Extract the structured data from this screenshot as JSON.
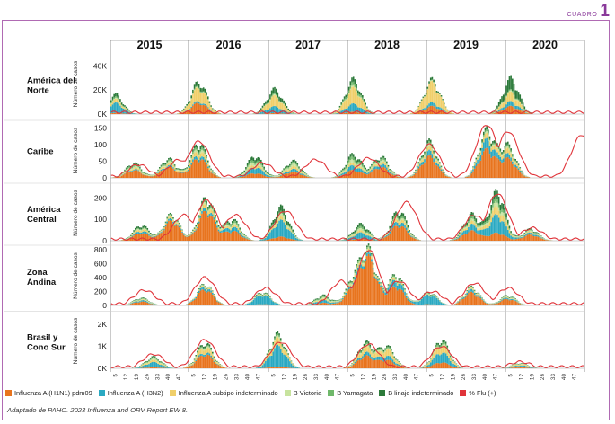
{
  "badge": {
    "label": "CUADRO",
    "number": "1"
  },
  "source": "Adaptado de PAHO. 2023 Influenza and ORV Report EW 8.",
  "chart_data": {
    "type": "bar",
    "stacked": true,
    "years": [
      "2015",
      "2016",
      "2017",
      "2018",
      "2019",
      "2020"
    ],
    "x_ticks": [
      "5",
      "12",
      "19",
      "26",
      "33",
      "40",
      "47"
    ],
    "ylabel": "Número de casos",
    "grid": false,
    "legend_position": "bottom",
    "series": [
      {
        "name": "Influenza A (H1N1) pdm09",
        "color": "#e8741e"
      },
      {
        "name": "Influenza A (H3N2)",
        "color": "#2aa9c2"
      },
      {
        "name": "Influenza A subtipo indeterminado",
        "color": "#f0cf6a"
      },
      {
        "name": "B Victoria",
        "color": "#c7e39e"
      },
      {
        "name": "B Yamagata",
        "color": "#6fb86a"
      },
      {
        "name": "B linaje indeterminado",
        "color": "#2c7a3a"
      },
      {
        "name": "% Flu (+)",
        "color": "#e0343a",
        "type": "line"
      }
    ],
    "panels": [
      {
        "region": "América del Norte",
        "yticks": [
          "0K",
          "20K",
          "40K"
        ],
        "ylim": [
          0,
          50000
        ],
        "season_peaks": [
          {
            "x": 2.5,
            "h1": 1000,
            "h3": 9000,
            "aun": 3000,
            "bv": 800,
            "by": 1200,
            "bl": 3000
          },
          {
            "x": 58,
            "h1": 10000,
            "h3": 1500,
            "aun": 12000,
            "bv": 800,
            "by": 800,
            "bl": 4000
          },
          {
            "x": 108,
            "h1": 800,
            "h3": 6000,
            "aun": 9000,
            "bv": 800,
            "by": 1000,
            "bl": 5000
          },
          {
            "x": 160,
            "h1": 2000,
            "h3": 7000,
            "aun": 14000,
            "bv": 1200,
            "by": 3000,
            "bl": 4000
          },
          {
            "x": 212,
            "h1": 7000,
            "h3": 3000,
            "aun": 18000,
            "bv": 600,
            "by": 400,
            "bl": 2000
          },
          {
            "x": 264,
            "h1": 7000,
            "h3": 4000,
            "aun": 8000,
            "bv": 1000,
            "by": 1000,
            "bl": 11000
          }
        ],
        "pos_peaks": [
          {
            "x": 1,
            "v": 26
          },
          {
            "x": 58,
            "v": 30
          },
          {
            "x": 108,
            "v": 25
          },
          {
            "x": 160,
            "v": 29
          },
          {
            "x": 212,
            "v": 27
          },
          {
            "x": 264,
            "v": 32
          }
        ]
      },
      {
        "region": "Caribe",
        "yticks": [
          "0",
          "50",
          "100",
          "150"
        ],
        "ylim": [
          0,
          165
        ],
        "season_peaks": [
          {
            "x": 15,
            "h1": 25,
            "h3": 3,
            "aun": 5,
            "bv": 5,
            "by": 6,
            "bl": 5
          },
          {
            "x": 38,
            "h1": 35,
            "h3": 5,
            "aun": 8,
            "bv": 5,
            "by": 5,
            "bl": 5
          },
          {
            "x": 58,
            "h1": 65,
            "h3": 10,
            "aun": 15,
            "bv": 8,
            "by": 8,
            "bl": 10
          },
          {
            "x": 95,
            "h1": 15,
            "h3": 20,
            "aun": 8,
            "bv": 10,
            "by": 8,
            "bl": 12
          },
          {
            "x": 120,
            "h1": 20,
            "h3": 8,
            "aun": 8,
            "bv": 8,
            "by": 6,
            "bl": 6
          },
          {
            "x": 160,
            "h1": 25,
            "h3": 15,
            "aun": 8,
            "bv": 10,
            "by": 10,
            "bl": 10
          },
          {
            "x": 178,
            "h1": 35,
            "h3": 10,
            "aun": 8,
            "bv": 6,
            "by": 6,
            "bl": 6
          },
          {
            "x": 210,
            "h1": 70,
            "h3": 15,
            "aun": 12,
            "bv": 8,
            "by": 6,
            "bl": 8
          },
          {
            "x": 248,
            "h1": 90,
            "h3": 30,
            "aun": 15,
            "bv": 5,
            "by": 5,
            "bl": 10
          },
          {
            "x": 262,
            "h1": 60,
            "h3": 12,
            "aun": 15,
            "bv": 5,
            "by": 5,
            "bl": 8
          }
        ],
        "pos_peaks": [
          {
            "x": 18,
            "v": 40
          },
          {
            "x": 45,
            "v": 55
          },
          {
            "x": 58,
            "v": 110
          },
          {
            "x": 100,
            "v": 45
          },
          {
            "x": 135,
            "v": 55
          },
          {
            "x": 170,
            "v": 60
          },
          {
            "x": 210,
            "v": 100
          },
          {
            "x": 248,
            "v": 160
          },
          {
            "x": 262,
            "v": 140
          },
          {
            "x": 311,
            "v": 130
          }
        ]
      },
      {
        "region": "América Central",
        "yticks": [
          "0",
          "100",
          "200"
        ],
        "ylim": [
          0,
          260
        ],
        "season_peaks": [
          {
            "x": 20,
            "h1": 40,
            "h3": 10,
            "aun": 10,
            "bv": 5,
            "by": 5,
            "bl": 10
          },
          {
            "x": 40,
            "h1": 100,
            "h3": 10,
            "aun": 10,
            "bv": 5,
            "by": 5,
            "bl": 5
          },
          {
            "x": 63,
            "h1": 150,
            "h3": 15,
            "aun": 20,
            "bv": 10,
            "by": 10,
            "bl": 15
          },
          {
            "x": 80,
            "h1": 50,
            "h3": 20,
            "aun": 10,
            "bv": 10,
            "by": 10,
            "bl": 10
          },
          {
            "x": 112,
            "h1": 20,
            "h3": 80,
            "aun": 15,
            "bv": 15,
            "by": 10,
            "bl": 30
          },
          {
            "x": 165,
            "h1": 10,
            "h3": 30,
            "aun": 10,
            "bv": 10,
            "by": 10,
            "bl": 15
          },
          {
            "x": 190,
            "h1": 80,
            "h3": 20,
            "aun": 15,
            "bv": 10,
            "by": 10,
            "bl": 20
          },
          {
            "x": 238,
            "h1": 50,
            "h3": 30,
            "aun": 15,
            "bv": 10,
            "by": 10,
            "bl": 20
          },
          {
            "x": 255,
            "h1": 40,
            "h3": 90,
            "aun": 40,
            "bv": 20,
            "by": 20,
            "bl": 40
          },
          {
            "x": 277,
            "h1": 30,
            "h3": 10,
            "aun": 5,
            "bv": 5,
            "by": 5,
            "bl": 5
          }
        ],
        "pos_peaks": [
          {
            "x": 48,
            "v": 120
          },
          {
            "x": 63,
            "v": 190
          },
          {
            "x": 82,
            "v": 120
          },
          {
            "x": 115,
            "v": 140
          },
          {
            "x": 195,
            "v": 180
          },
          {
            "x": 240,
            "v": 120
          },
          {
            "x": 255,
            "v": 220
          },
          {
            "x": 278,
            "v": 60
          }
        ]
      },
      {
        "region": "Zona Andina",
        "yticks": [
          "0",
          "200",
          "400",
          "600",
          "800"
        ],
        "ylim": [
          0,
          850
        ],
        "season_peaks": [
          {
            "x": 20,
            "h1": 60,
            "h3": 20,
            "aun": 10,
            "bv": 10,
            "by": 10,
            "bl": 10
          },
          {
            "x": 62,
            "h1": 250,
            "h3": 40,
            "aun": 20,
            "bv": 10,
            "by": 10,
            "bl": 10
          },
          {
            "x": 100,
            "h1": 20,
            "h3": 150,
            "aun": 10,
            "bv": 10,
            "by": 10,
            "bl": 10
          },
          {
            "x": 140,
            "h1": 40,
            "h3": 40,
            "aun": 20,
            "bv": 20,
            "by": 20,
            "bl": 20
          },
          {
            "x": 160,
            "h1": 250,
            "h3": 40,
            "aun": 20,
            "bv": 30,
            "by": 20,
            "bl": 20
          },
          {
            "x": 170,
            "h1": 700,
            "h3": 40,
            "aun": 30,
            "bv": 20,
            "by": 20,
            "bl": 20
          },
          {
            "x": 188,
            "h1": 300,
            "h3": 100,
            "aun": 30,
            "bv": 20,
            "by": 20,
            "bl": 20
          },
          {
            "x": 210,
            "h1": 20,
            "h3": 150,
            "aun": 10,
            "bv": 10,
            "by": 10,
            "bl": 10
          },
          {
            "x": 238,
            "h1": 200,
            "h3": 40,
            "aun": 20,
            "bv": 10,
            "by": 10,
            "bl": 10
          },
          {
            "x": 262,
            "h1": 100,
            "h3": 20,
            "aun": 10,
            "bv": 10,
            "by": 10,
            "bl": 10
          }
        ],
        "pos_peaks": [
          {
            "x": 22,
            "v": 220
          },
          {
            "x": 62,
            "v": 400
          },
          {
            "x": 102,
            "v": 250
          },
          {
            "x": 152,
            "v": 350
          },
          {
            "x": 170,
            "v": 800
          },
          {
            "x": 190,
            "v": 350
          },
          {
            "x": 212,
            "v": 200
          },
          {
            "x": 240,
            "v": 320
          },
          {
            "x": 262,
            "v": 250
          }
        ]
      },
      {
        "region": "Brasil y Cono Sur",
        "yticks": [
          "0K",
          "1K",
          "2K"
        ],
        "ylim": [
          0,
          2500
        ],
        "season_peaks": [
          {
            "x": 28,
            "h1": 50,
            "h3": 250,
            "aun": 100,
            "bv": 60,
            "by": 60,
            "bl": 60
          },
          {
            "x": 62,
            "h1": 700,
            "h3": 100,
            "aun": 250,
            "bv": 80,
            "by": 60,
            "bl": 100
          },
          {
            "x": 110,
            "h1": 80,
            "h3": 1000,
            "aun": 350,
            "bv": 80,
            "by": 80,
            "bl": 100
          },
          {
            "x": 168,
            "h1": 600,
            "h3": 150,
            "aun": 250,
            "bv": 80,
            "by": 80,
            "bl": 100
          },
          {
            "x": 182,
            "h1": 400,
            "h3": 200,
            "aun": 300,
            "bv": 60,
            "by": 60,
            "bl": 80
          },
          {
            "x": 218,
            "h1": 300,
            "h3": 500,
            "aun": 350,
            "bv": 80,
            "by": 100,
            "bl": 100
          },
          {
            "x": 270,
            "h1": 50,
            "h3": 100,
            "aun": 60,
            "bv": 20,
            "by": 20,
            "bl": 20
          }
        ],
        "pos_peaks": [
          {
            "x": 28,
            "v": 650
          },
          {
            "x": 62,
            "v": 1300
          },
          {
            "x": 112,
            "v": 1200
          },
          {
            "x": 170,
            "v": 1100
          },
          {
            "x": 218,
            "v": 1000
          },
          {
            "x": 270,
            "v": 300
          }
        ]
      }
    ]
  }
}
